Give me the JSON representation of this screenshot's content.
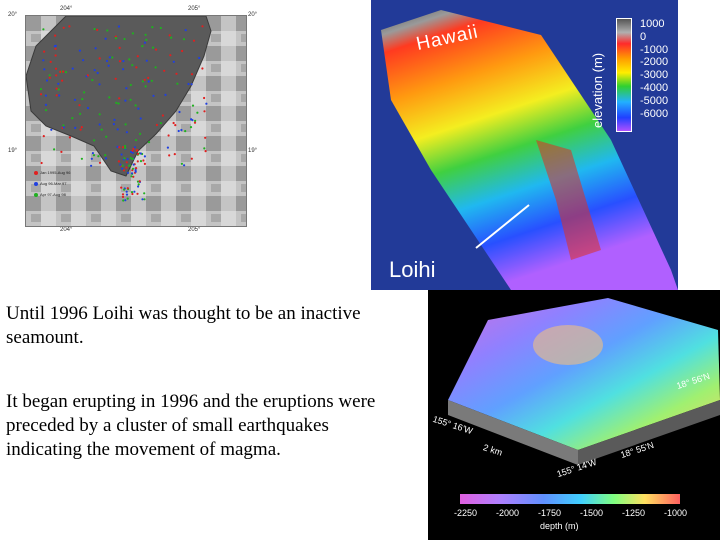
{
  "map": {
    "lon_ticks": [
      "204°",
      "205°"
    ],
    "lat_ticks": [
      "20°",
      "19°"
    ],
    "legend": [
      {
        "label": "Jan 1995-Aug 96",
        "color": "#e02020"
      },
      {
        "label": "Aug 96-Mar 97",
        "color": "#2040e0"
      },
      {
        "label": "Apr 97-Aug 98",
        "color": "#20b020"
      }
    ]
  },
  "hawaii_view": {
    "island_label": "Hawaii",
    "seamount_label": "Loihi",
    "scale_title": "elevation (m)",
    "scale_values": [
      "1000",
      "0",
      "-1000",
      "-2000",
      "-3000",
      "-4000",
      "-5000",
      "-6000"
    ]
  },
  "bathymetry_view": {
    "coord_labels": [
      "18° 56'N",
      "155° 16'W",
      "2 km",
      "18° 55'N",
      "155° 14'W"
    ],
    "colorbar_ticks": [
      "-2250",
      "-2000",
      "-1750",
      "-1500",
      "-1250",
      "-1000"
    ],
    "colorbar_title": "depth (m)"
  },
  "text": {
    "para1": "Until 1996 Loihi was thought to be an inactive seamount.",
    "para2": "It began erupting in 1996 and the eruptions were preceded by a cluster of small earthquakes indicating the movement of magma."
  }
}
